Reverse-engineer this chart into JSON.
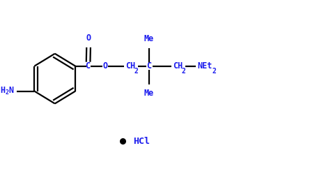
{
  "bg_color": "#ffffff",
  "line_color": "#000000",
  "text_color": "#1a1aee",
  "bullet_color": "#000000",
  "fig_width": 4.55,
  "fig_height": 2.65,
  "dpi": 100,
  "xlim": [
    0,
    9.1
  ],
  "ylim": [
    0,
    5.3
  ]
}
